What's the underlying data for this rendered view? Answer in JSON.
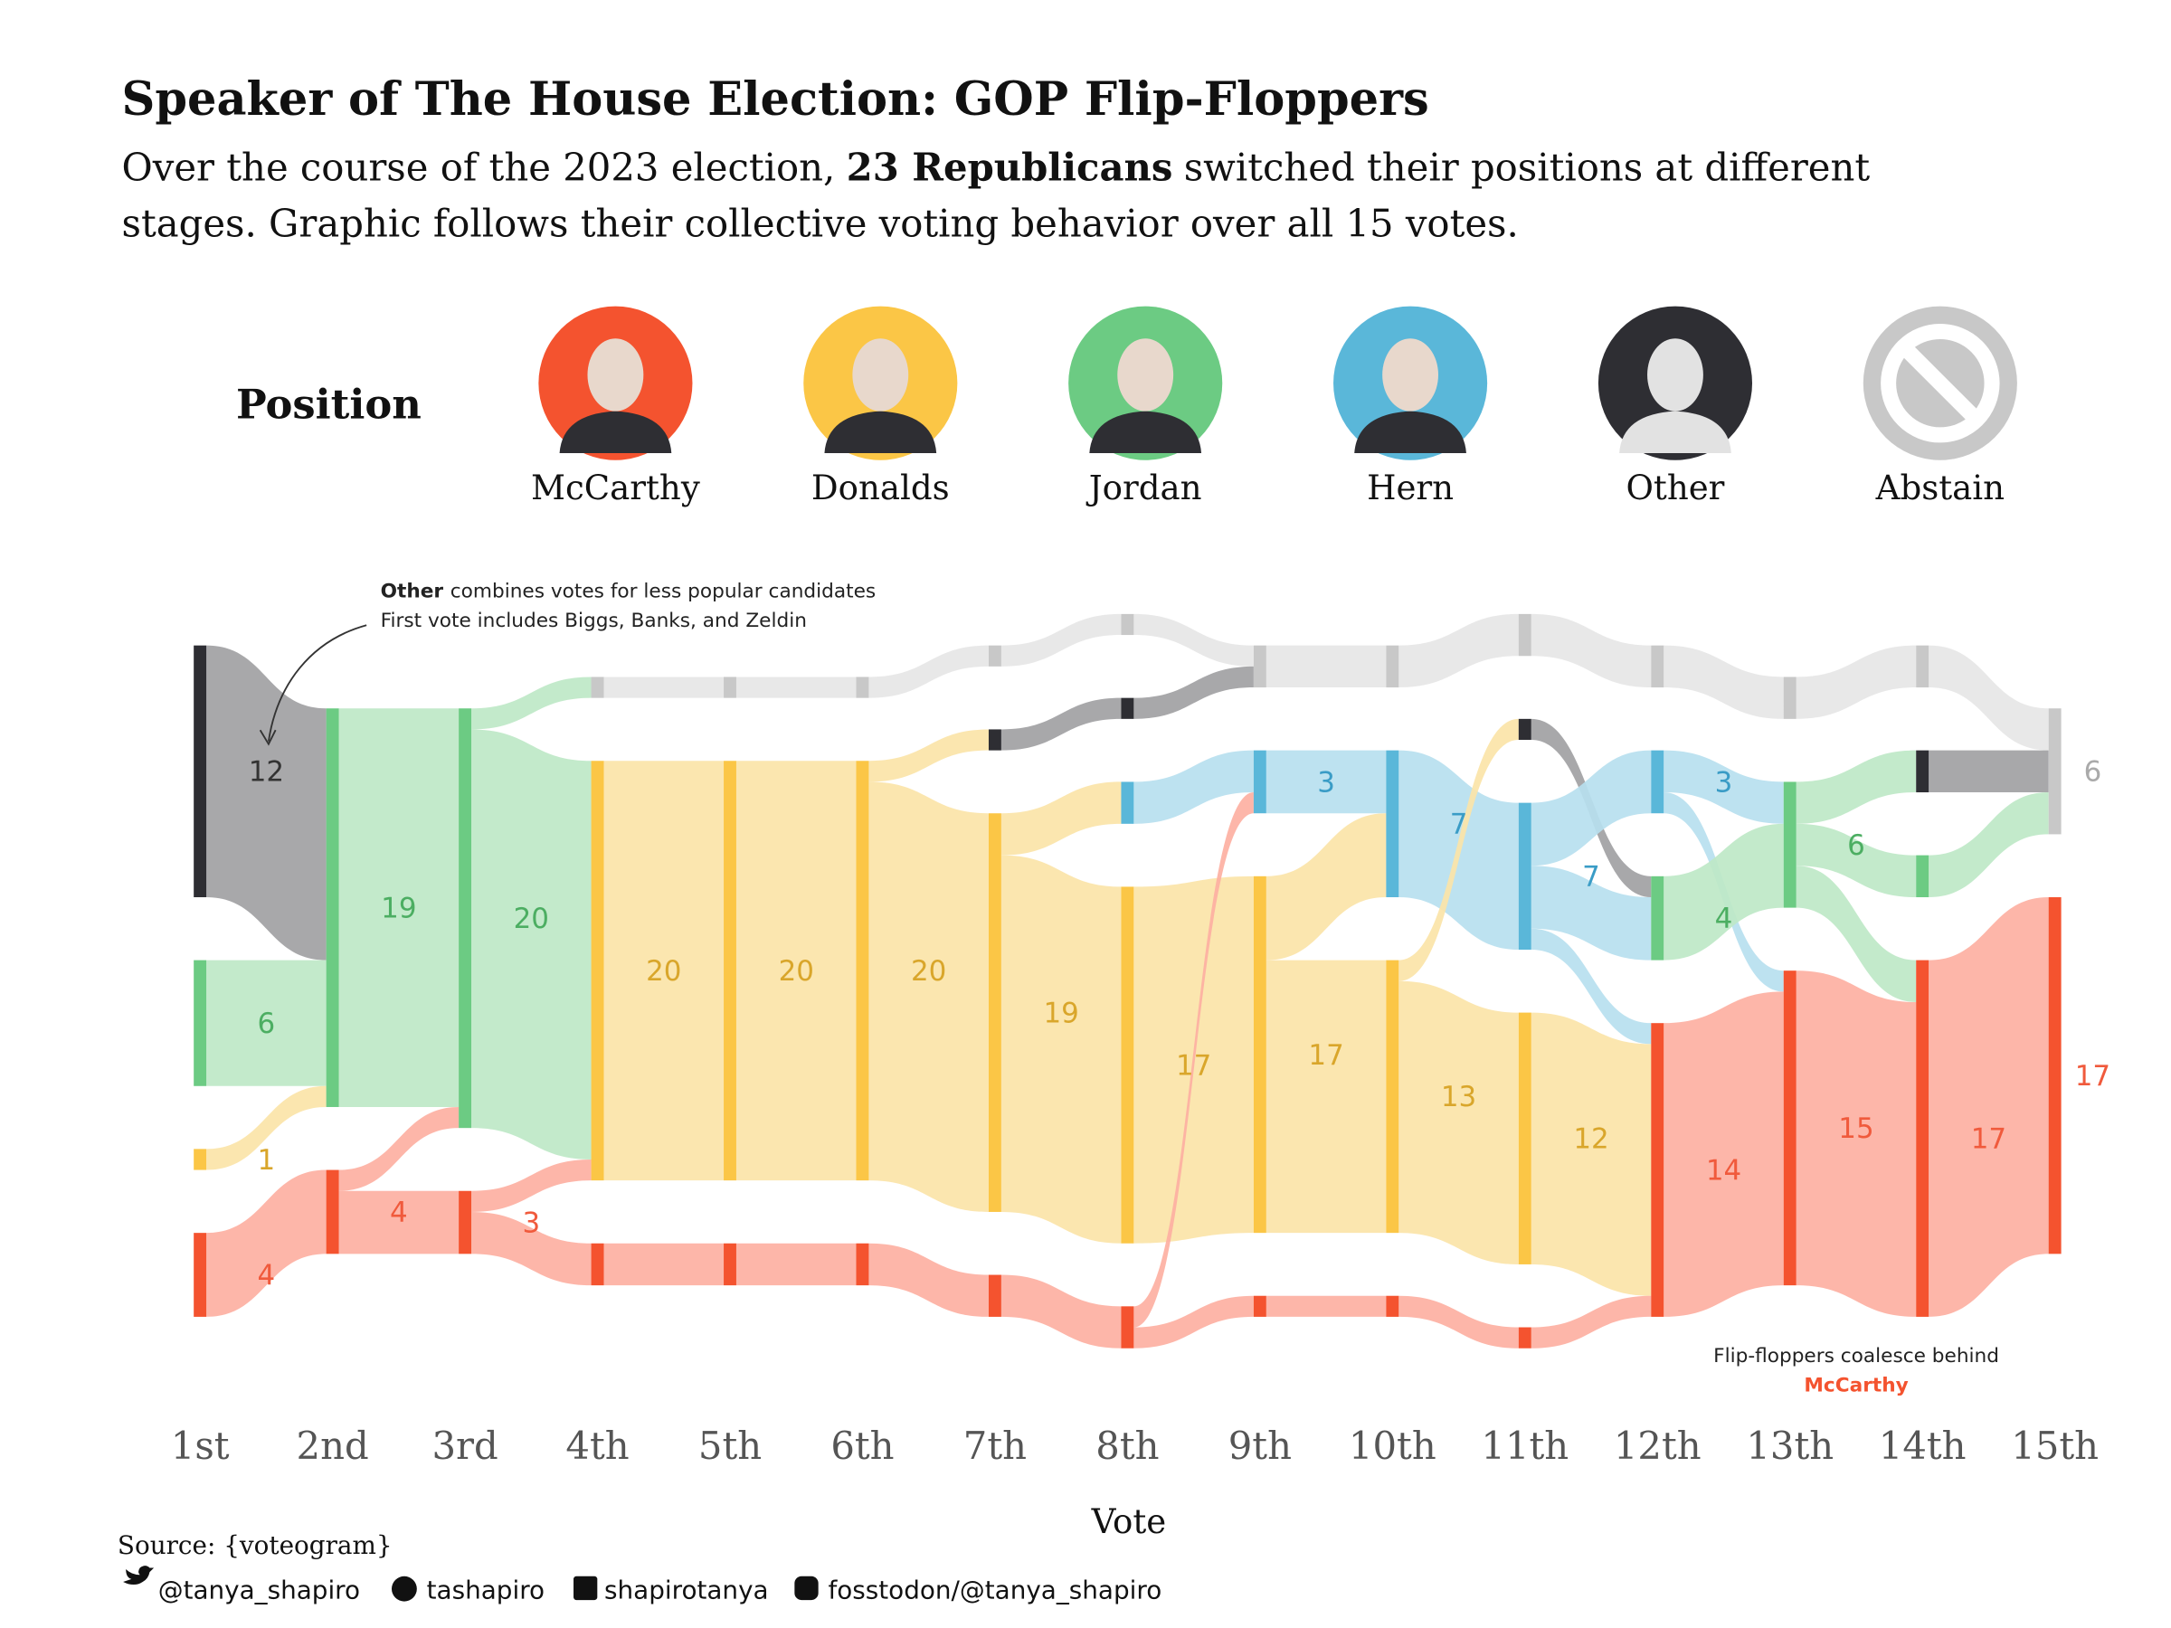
{
  "chart_data": {
    "type": "alluvial",
    "title": "Speaker of The House Election: GOP Flip-Floppers",
    "subtitle": [
      "Over the course of the 2023 election,",
      "23 Republicans",
      "switched their positions at different",
      "stages. Graphic follows their collective voting behavior over all 15 votes."
    ],
    "legend_title": "Position",
    "x_label": "Vote",
    "categories": [
      "1st",
      "2nd",
      "3rd",
      "4th",
      "5th",
      "6th",
      "7th",
      "8th",
      "9th",
      "10th",
      "11th",
      "12th",
      "13th",
      "14th",
      "15th"
    ],
    "series": [
      {
        "name": "McCarthy",
        "color": "#f4532f",
        "ribbon_color": "#fdb0a2",
        "label_color": "#f05a3c",
        "values": [
          4,
          4,
          3,
          2,
          2,
          2,
          2,
          2,
          1,
          1,
          1,
          14,
          15,
          17,
          17
        ],
        "value_labels": [
          "4",
          "4",
          "3",
          null,
          null,
          null,
          null,
          null,
          null,
          null,
          null,
          "14",
          "15",
          "17",
          "17"
        ]
      },
      {
        "name": "Donalds",
        "color": "#fbc646",
        "ribbon_color": "#fbe4a8",
        "label_color": "#d9a62b",
        "values": [
          1,
          null,
          null,
          20,
          20,
          20,
          19,
          17,
          17,
          13,
          12,
          null,
          null,
          null,
          null
        ],
        "value_labels": [
          "1",
          null,
          null,
          "20",
          "20",
          "20",
          "19",
          "17",
          "17",
          "13",
          "12",
          null,
          null,
          null,
          null
        ]
      },
      {
        "name": "Jordan",
        "color": "#6ccb83",
        "ribbon_color": "#bee8c7",
        "label_color": "#4cae62",
        "values": [
          6,
          19,
          20,
          null,
          null,
          null,
          null,
          null,
          null,
          null,
          null,
          4,
          6,
          2,
          null
        ],
        "value_labels": [
          "6",
          "19",
          "20",
          null,
          null,
          null,
          null,
          null,
          null,
          null,
          null,
          "4",
          "6",
          null,
          null
        ]
      },
      {
        "name": "Hern",
        "color": "#5ab7d9",
        "ribbon_color": "#b7e0ef",
        "label_color": "#3a9cc6",
        "values": [
          null,
          null,
          null,
          null,
          null,
          null,
          null,
          2,
          3,
          7,
          7,
          3,
          null,
          null,
          null
        ],
        "value_labels": [
          null,
          null,
          null,
          null,
          null,
          null,
          null,
          null,
          "3",
          "7",
          "7",
          "3",
          null,
          null,
          null
        ]
      },
      {
        "name": "Other",
        "color": "#2e2e33",
        "ribbon_color": "#a1a1a3",
        "label_color": "#333333",
        "values": [
          12,
          null,
          null,
          null,
          null,
          null,
          1,
          1,
          null,
          null,
          1,
          null,
          null,
          2,
          null
        ],
        "value_labels": [
          "12",
          null,
          null,
          null,
          null,
          null,
          null,
          null,
          null,
          null,
          null,
          null,
          null,
          null,
          null
        ]
      },
      {
        "name": "Abstain",
        "color": "#c8c8c8",
        "ribbon_color": "#e6e6e6",
        "label_color": "#aaaaaa",
        "values": [
          null,
          null,
          null,
          1,
          1,
          1,
          1,
          1,
          2,
          2,
          2,
          2,
          2,
          2,
          6
        ],
        "value_labels": [
          null,
          null,
          null,
          null,
          null,
          null,
          null,
          null,
          null,
          null,
          null,
          null,
          null,
          null,
          "6"
        ]
      }
    ],
    "annotations": [
      {
        "bold": "Other",
        "text": "combines votes for less popular candidates",
        "text2": "First vote includes Biggs, Banks, and Zeldin"
      },
      {
        "text": "Flip-floppers coalesce behind",
        "highlight": "McCarthy"
      }
    ]
  },
  "source": "Source: {voteogram}",
  "socials": [
    "@tanya_shapiro",
    "tashapiro",
    "shapirotanya",
    "fosstodon/@tanya_shapiro"
  ]
}
